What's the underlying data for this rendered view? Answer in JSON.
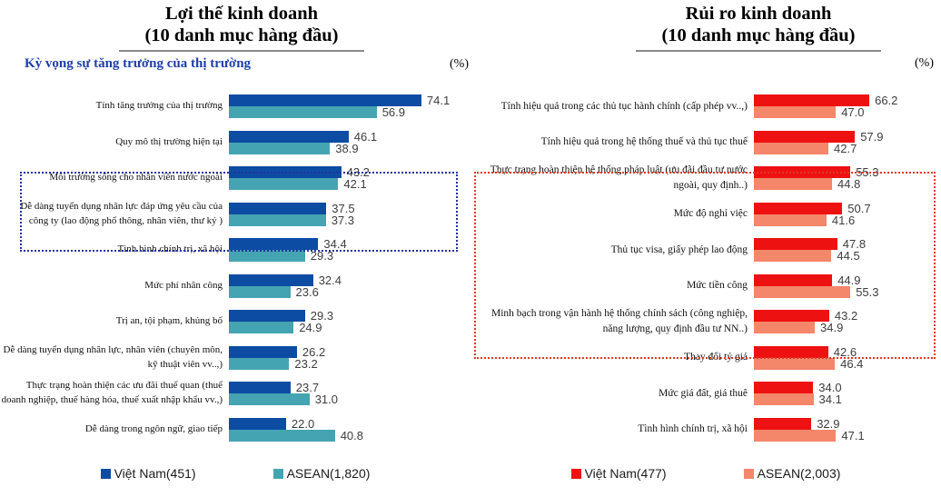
{
  "chart_data": [
    {
      "type": "bar",
      "orientation": "horizontal",
      "title_lines": [
        "Lợi thế kinh doanh",
        "(10 danh mục hàng đầu)"
      ],
      "annotation": "Kỳ vọng sự tăng trưởng của thị trường",
      "unit": "(%)",
      "grid": false,
      "legend_position": "bottom",
      "value_labels": true,
      "xlim": [
        0,
        80
      ],
      "categories": [
        "Tính tăng trưởng của thị trường",
        "Quy mô thị trường hiện tại",
        "Môi trường sống cho nhân viên nước ngoài",
        "Dễ dàng tuyển dụng  nhân lực đáp ứng yêu cầu của công ty (lao động phổ thông, nhân viên, thư ký )",
        "Tình hình chính trị, xã hội",
        "Mức phí nhân công",
        "Trị an, tội phạm, khủng bố",
        "Dễ dàng tuyển dụng nhân lực, nhân viên (chuyên môn, kỹ thuật viên vv..,)",
        "Thực trạng hoàn thiện các ưu đãi thuế quan (thuế doanh nghiệp, thuế hàng hóa, thuế xuất nhập khẩu vv.,)",
        "Dễ dàng trong ngôn ngữ, giao tiếp"
      ],
      "series": [
        {
          "name": "Việt Nam(451)",
          "color": "#0c4ca3",
          "values": [
            74.1,
            46.1,
            43.2,
            37.5,
            34.4,
            32.4,
            29.3,
            26.2,
            23.7,
            22.0
          ]
        },
        {
          "name": "ASEAN(1,820)",
          "color": "#45a4b2",
          "values": [
            56.9,
            38.9,
            42.1,
            37.3,
            29.3,
            23.6,
            24.9,
            23.2,
            31.0,
            40.8
          ]
        }
      ],
      "highlight_box": {
        "rows": [
          0,
          1
        ],
        "color": "#2233a0",
        "style": "dotted"
      }
    },
    {
      "type": "bar",
      "orientation": "horizontal",
      "title_lines": [
        "Rủi ro kinh doanh",
        "(10 danh mục hàng đầu)"
      ],
      "unit": "(%)",
      "grid": false,
      "legend_position": "bottom",
      "value_labels": true,
      "xlim": [
        0,
        100
      ],
      "categories": [
        "Tính hiệu quả trong các thủ tục hành chính (cấp phép vv..,)",
        "Tính hiệu quả trong hệ thống thuế và thủ tục thuế",
        "Thực trạng hoàn thiện hệ thống pháp luật (ưu đãi đầu tư nước ngoài, quy định..)",
        "Mức độ nghỉ việc",
        "Thủ tục visa, giấy phép lao động",
        "Mức tiền công",
        "Minh bạch trong vận hành hệ thống chính sách (công nghiệp, năng lượng, quy định đầu tư NN..)",
        "Thay đổi tỷ giá",
        "Mức giá đất, giá thuê",
        "Tình hình chính trị, xã hội"
      ],
      "series": [
        {
          "name": "Việt Nam(477)",
          "color": "#ee1111",
          "values": [
            66.2,
            57.9,
            55.3,
            50.7,
            47.8,
            44.9,
            43.2,
            42.6,
            34.0,
            32.9
          ]
        },
        {
          "name": "ASEAN(2,003)",
          "color": "#f4866a",
          "values": [
            47.0,
            42.7,
            44.8,
            41.6,
            44.5,
            55.3,
            34.9,
            46.4,
            34.1,
            47.1
          ]
        }
      ],
      "highlight_box": {
        "rows": [
          0,
          4
        ],
        "color": "#dc3a28",
        "style": "dotted"
      }
    }
  ]
}
